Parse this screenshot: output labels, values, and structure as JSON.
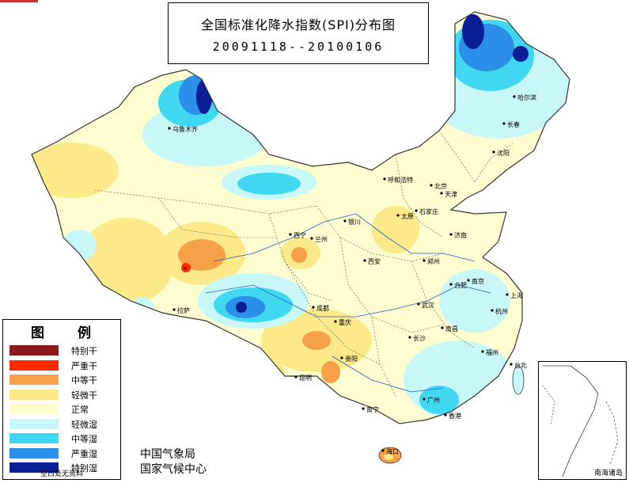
{
  "title": {
    "main": "全国标准化降水指数(SPI)分布图",
    "date_range": "20091118--20100106"
  },
  "legend": {
    "heading": "图 例",
    "items": [
      {
        "label": "特别干",
        "color": "#8b1a1a"
      },
      {
        "label": "严重干",
        "color": "#ff2a00"
      },
      {
        "label": "中等干",
        "color": "#f7a04a"
      },
      {
        "label": "轻微干",
        "color": "#fce98a"
      },
      {
        "label": "正常",
        "color": "#fdfdd0"
      },
      {
        "label": "轻微湿",
        "color": "#c8f7f7"
      },
      {
        "label": "中等湿",
        "color": "#3fd8f0"
      },
      {
        "label": "严重湿",
        "color": "#2b8ee8"
      },
      {
        "label": "特别湿",
        "color": "#0a1e96"
      }
    ],
    "note": "空白处无资料"
  },
  "credits": {
    "line1": "中国气象局",
    "line2": "国家气候中心"
  },
  "inset": {
    "label": "南海诸岛"
  },
  "cities": [
    "乌鲁木齐",
    "哈尔滨",
    "长春",
    "沈阳",
    "呼和浩特",
    "北京",
    "天津",
    "太原",
    "石家庄",
    "济南",
    "西宁",
    "兰州",
    "银川",
    "西安",
    "郑州",
    "合肥",
    "南京",
    "上海",
    "杭州",
    "武汉",
    "南昌",
    "福州",
    "台北",
    "长沙",
    "拉萨",
    "成都",
    "重庆",
    "贵阳",
    "昆明",
    "南宁",
    "广州",
    "香港",
    "海口"
  ]
}
